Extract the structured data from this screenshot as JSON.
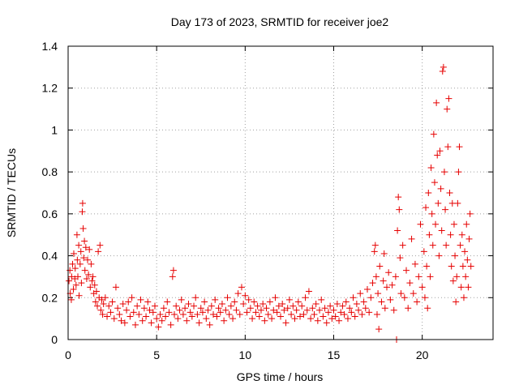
{
  "chart_data": {
    "type": "scatter",
    "title": "Day 173 of 2023, SRMTID for receiver joe2",
    "xlabel": "GPS time / hours",
    "ylabel": "SRMTID / TECUs",
    "xlim": [
      0,
      24
    ],
    "ylim": [
      0,
      1.4
    ],
    "xticks": [
      0,
      5,
      10,
      15,
      20
    ],
    "xtick_labels": [
      "0",
      "5",
      "10",
      "15",
      "20"
    ],
    "yticks": [
      0,
      0.2,
      0.4,
      0.6,
      0.8,
      1.0,
      1.2,
      1.4
    ],
    "ytick_labels": [
      "0",
      "0.2",
      "0.4",
      "0.6",
      "0.8",
      "1",
      "1.2",
      "1.4"
    ],
    "grid": true,
    "marker": "+",
    "color": "#e60000",
    "series": [
      {
        "name": "joe2",
        "points": [
          [
            0.05,
            0.28
          ],
          [
            0.1,
            0.33
          ],
          [
            0.12,
            0.22
          ],
          [
            0.18,
            0.19
          ],
          [
            0.2,
            0.3
          ],
          [
            0.25,
            0.36
          ],
          [
            0.3,
            0.24
          ],
          [
            0.32,
            0.41
          ],
          [
            0.38,
            0.29
          ],
          [
            0.4,
            0.34
          ],
          [
            0.45,
            0.26
          ],
          [
            0.5,
            0.5
          ],
          [
            0.52,
            0.38
          ],
          [
            0.55,
            0.3
          ],
          [
            0.6,
            0.45
          ],
          [
            0.62,
            0.21
          ],
          [
            0.68,
            0.36
          ],
          [
            0.72,
            0.42
          ],
          [
            0.75,
            0.27
          ],
          [
            0.8,
            0.61
          ],
          [
            0.82,
            0.65
          ],
          [
            0.85,
            0.53
          ],
          [
            0.88,
            0.39
          ],
          [
            0.92,
            0.47
          ],
          [
            0.95,
            0.33
          ],
          [
            1.0,
            0.44
          ],
          [
            1.05,
            0.29
          ],
          [
            1.1,
            0.38
          ],
          [
            1.15,
            0.31
          ],
          [
            1.2,
            0.43
          ],
          [
            1.25,
            0.25
          ],
          [
            1.3,
            0.36
          ],
          [
            1.35,
            0.28
          ],
          [
            1.4,
            0.3
          ],
          [
            1.45,
            0.22
          ],
          [
            1.5,
            0.26
          ],
          [
            1.55,
            0.18
          ],
          [
            1.6,
            0.23
          ],
          [
            1.65,
            0.16
          ],
          [
            1.7,
            0.42
          ],
          [
            1.75,
            0.2
          ],
          [
            1.8,
            0.45
          ],
          [
            1.85,
            0.14
          ],
          [
            1.9,
            0.19
          ],
          [
            1.95,
            0.12
          ],
          [
            2.0,
            0.17
          ],
          [
            2.1,
            0.2
          ],
          [
            2.2,
            0.11
          ],
          [
            2.3,
            0.16
          ],
          [
            2.4,
            0.13
          ],
          [
            2.5,
            0.18
          ],
          [
            2.6,
            0.1
          ],
          [
            2.7,
            0.25
          ],
          [
            2.8,
            0.15
          ],
          [
            2.9,
            0.12
          ],
          [
            3.0,
            0.09
          ],
          [
            3.1,
            0.17
          ],
          [
            3.2,
            0.08
          ],
          [
            3.3,
            0.14
          ],
          [
            3.4,
            0.18
          ],
          [
            3.5,
            0.11
          ],
          [
            3.6,
            0.2
          ],
          [
            3.7,
            0.13
          ],
          [
            3.8,
            0.07
          ],
          [
            3.9,
            0.16
          ],
          [
            4.0,
            0.12
          ],
          [
            4.1,
            0.19
          ],
          [
            4.2,
            0.09
          ],
          [
            4.3,
            0.15
          ],
          [
            4.4,
            0.11
          ],
          [
            4.5,
            0.18
          ],
          [
            4.6,
            0.14
          ],
          [
            4.7,
            0.08
          ],
          [
            4.8,
            0.13
          ],
          [
            4.9,
            0.16
          ],
          [
            5.0,
            0.1
          ],
          [
            5.1,
            0.06
          ],
          [
            5.2,
            0.12
          ],
          [
            5.3,
            0.09
          ],
          [
            5.4,
            0.15
          ],
          [
            5.5,
            0.11
          ],
          [
            5.6,
            0.18
          ],
          [
            5.7,
            0.13
          ],
          [
            5.8,
            0.07
          ],
          [
            5.9,
            0.3
          ],
          [
            5.95,
            0.33
          ],
          [
            6.0,
            0.12
          ],
          [
            6.1,
            0.16
          ],
          [
            6.2,
            0.1
          ],
          [
            6.3,
            0.14
          ],
          [
            6.4,
            0.19
          ],
          [
            6.5,
            0.12
          ],
          [
            6.6,
            0.15
          ],
          [
            6.7,
            0.09
          ],
          [
            6.8,
            0.17
          ],
          [
            6.9,
            0.13
          ],
          [
            7.0,
            0.11
          ],
          [
            7.1,
            0.16
          ],
          [
            7.2,
            0.2
          ],
          [
            7.3,
            0.12
          ],
          [
            7.4,
            0.08
          ],
          [
            7.5,
            0.15
          ],
          [
            7.6,
            0.13
          ],
          [
            7.7,
            0.18
          ],
          [
            7.8,
            0.1
          ],
          [
            7.9,
            0.14
          ],
          [
            8.0,
            0.07
          ],
          [
            8.1,
            0.16
          ],
          [
            8.2,
            0.12
          ],
          [
            8.3,
            0.19
          ],
          [
            8.4,
            0.11
          ],
          [
            8.5,
            0.15
          ],
          [
            8.6,
            0.13
          ],
          [
            8.7,
            0.17
          ],
          [
            8.8,
            0.09
          ],
          [
            8.9,
            0.14
          ],
          [
            9.0,
            0.2
          ],
          [
            9.1,
            0.12
          ],
          [
            9.2,
            0.16
          ],
          [
            9.3,
            0.1
          ],
          [
            9.4,
            0.18
          ],
          [
            9.5,
            0.14
          ],
          [
            9.6,
            0.22
          ],
          [
            9.7,
            0.12
          ],
          [
            9.8,
            0.25
          ],
          [
            9.9,
            0.17
          ],
          [
            10.0,
            0.21
          ],
          [
            10.1,
            0.13
          ],
          [
            10.2,
            0.19
          ],
          [
            10.3,
            0.15
          ],
          [
            10.4,
            0.1
          ],
          [
            10.5,
            0.18
          ],
          [
            10.6,
            0.13
          ],
          [
            10.7,
            0.16
          ],
          [
            10.8,
            0.11
          ],
          [
            10.9,
            0.14
          ],
          [
            11.0,
            0.17
          ],
          [
            11.1,
            0.09
          ],
          [
            11.2,
            0.15
          ],
          [
            11.3,
            0.12
          ],
          [
            11.4,
            0.18
          ],
          [
            11.5,
            0.1
          ],
          [
            11.6,
            0.14
          ],
          [
            11.7,
            0.2
          ],
          [
            11.8,
            0.13
          ],
          [
            11.9,
            0.16
          ],
          [
            12.0,
            0.11
          ],
          [
            12.1,
            0.17
          ],
          [
            12.2,
            0.14
          ],
          [
            12.3,
            0.08
          ],
          [
            12.4,
            0.15
          ],
          [
            12.5,
            0.19
          ],
          [
            12.6,
            0.12
          ],
          [
            12.7,
            0.16
          ],
          [
            12.8,
            0.1
          ],
          [
            12.9,
            0.14
          ],
          [
            13.0,
            0.18
          ],
          [
            13.1,
            0.11
          ],
          [
            13.2,
            0.16
          ],
          [
            13.3,
            0.12
          ],
          [
            13.4,
            0.2
          ],
          [
            13.5,
            0.14
          ],
          [
            13.6,
            0.23
          ],
          [
            13.7,
            0.1
          ],
          [
            13.8,
            0.15
          ],
          [
            13.9,
            0.12
          ],
          [
            14.0,
            0.17
          ],
          [
            14.1,
            0.09
          ],
          [
            14.2,
            0.14
          ],
          [
            14.3,
            0.19
          ],
          [
            14.4,
            0.11
          ],
          [
            14.5,
            0.15
          ],
          [
            14.6,
            0.08
          ],
          [
            14.7,
            0.13
          ],
          [
            14.8,
            0.16
          ],
          [
            14.9,
            0.1
          ],
          [
            15.0,
            0.14
          ],
          [
            15.1,
            0.11
          ],
          [
            15.2,
            0.17
          ],
          [
            15.3,
            0.09
          ],
          [
            15.4,
            0.13
          ],
          [
            15.5,
            0.16
          ],
          [
            15.6,
            0.12
          ],
          [
            15.7,
            0.18
          ],
          [
            15.8,
            0.1
          ],
          [
            15.9,
            0.15
          ],
          [
            16.0,
            0.13
          ],
          [
            16.1,
            0.2
          ],
          [
            16.2,
            0.11
          ],
          [
            16.3,
            0.17
          ],
          [
            16.4,
            0.14
          ],
          [
            16.5,
            0.22
          ],
          [
            16.6,
            0.12
          ],
          [
            16.7,
            0.18
          ],
          [
            16.8,
            0.15
          ],
          [
            16.9,
            0.24
          ],
          [
            17.0,
            0.13
          ],
          [
            17.1,
            0.2
          ],
          [
            17.2,
            0.27
          ],
          [
            17.3,
            0.42
          ],
          [
            17.35,
            0.45
          ],
          [
            17.4,
            0.3
          ],
          [
            17.45,
            0.12
          ],
          [
            17.5,
            0.22
          ],
          [
            17.55,
            0.05
          ],
          [
            17.6,
            0.35
          ],
          [
            17.7,
            0.18
          ],
          [
            17.8,
            0.28
          ],
          [
            17.85,
            0.41
          ],
          [
            17.9,
            0.15
          ],
          [
            18.0,
            0.25
          ],
          [
            18.1,
            0.32
          ],
          [
            18.2,
            0.19
          ],
          [
            18.3,
            0.26
          ],
          [
            18.4,
            0.14
          ],
          [
            18.5,
            0.3
          ],
          [
            18.55,
            0.0
          ],
          [
            18.6,
            0.52
          ],
          [
            18.65,
            0.68
          ],
          [
            18.7,
            0.62
          ],
          [
            18.75,
            0.39
          ],
          [
            18.8,
            0.22
          ],
          [
            18.9,
            0.45
          ],
          [
            19.0,
            0.2
          ],
          [
            19.1,
            0.33
          ],
          [
            19.2,
            0.15
          ],
          [
            19.3,
            0.27
          ],
          [
            19.4,
            0.48
          ],
          [
            19.5,
            0.22
          ],
          [
            19.6,
            0.36
          ],
          [
            19.7,
            0.18
          ],
          [
            19.8,
            0.3
          ],
          [
            19.9,
            0.55
          ],
          [
            20.0,
            0.25
          ],
          [
            20.1,
            0.42
          ],
          [
            20.15,
            0.2
          ],
          [
            20.2,
            0.63
          ],
          [
            20.25,
            0.35
          ],
          [
            20.3,
            0.15
          ],
          [
            20.35,
            0.7
          ],
          [
            20.4,
            0.5
          ],
          [
            20.45,
            0.3
          ],
          [
            20.5,
            0.82
          ],
          [
            20.55,
            0.6
          ],
          [
            20.6,
            0.45
          ],
          [
            20.65,
            0.98
          ],
          [
            20.7,
            0.75
          ],
          [
            20.75,
            0.55
          ],
          [
            20.8,
            1.13
          ],
          [
            20.85,
            0.88
          ],
          [
            20.9,
            0.65
          ],
          [
            20.95,
            0.4
          ],
          [
            21.0,
            0.9
          ],
          [
            21.05,
            0.72
          ],
          [
            21.1,
            0.52
          ],
          [
            21.15,
            1.28
          ],
          [
            21.2,
            1.3
          ],
          [
            21.25,
            0.8
          ],
          [
            21.3,
            0.62
          ],
          [
            21.35,
            0.45
          ],
          [
            21.4,
            1.1
          ],
          [
            21.45,
            0.92
          ],
          [
            21.5,
            1.15
          ],
          [
            21.55,
            0.7
          ],
          [
            21.6,
            0.5
          ],
          [
            21.65,
            0.35
          ],
          [
            21.7,
            0.65
          ],
          [
            21.75,
            0.28
          ],
          [
            21.8,
            0.55
          ],
          [
            21.85,
            0.4
          ],
          [
            21.9,
            0.18
          ],
          [
            21.95,
            0.3
          ],
          [
            22.0,
            0.65
          ],
          [
            22.05,
            0.8
          ],
          [
            22.1,
            0.92
          ],
          [
            22.15,
            0.45
          ],
          [
            22.2,
            0.25
          ],
          [
            22.25,
            0.5
          ],
          [
            22.3,
            0.35
          ],
          [
            22.35,
            0.2
          ],
          [
            22.4,
            0.42
          ],
          [
            22.45,
            0.3
          ],
          [
            22.5,
            0.55
          ],
          [
            22.55,
            0.38
          ],
          [
            22.6,
            0.25
          ],
          [
            22.65,
            0.48
          ],
          [
            22.7,
            0.6
          ],
          [
            22.75,
            0.35
          ]
        ]
      }
    ]
  }
}
